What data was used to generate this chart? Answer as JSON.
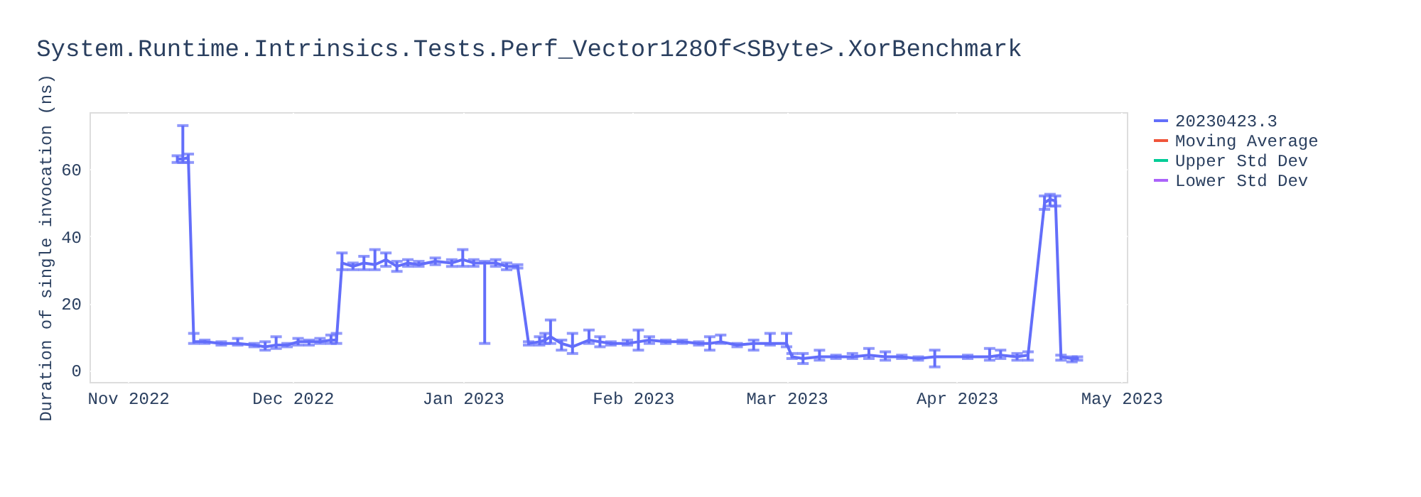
{
  "chart_data": {
    "type": "line",
    "title": "System.Runtime.Intrinsics.Tests.Perf_Vector128Of<SByte>.XorBenchmark",
    "ylabel": "Duration of single invocation (ns)",
    "xlim": [
      "2022-10-25",
      "2023-05-02"
    ],
    "xticks": [
      {
        "value": "2022-11-01",
        "label": "Nov 2022"
      },
      {
        "value": "2022-12-01",
        "label": "Dec 2022"
      },
      {
        "value": "2023-01-01",
        "label": "Jan 2023"
      },
      {
        "value": "2023-02-01",
        "label": "Feb 2023"
      },
      {
        "value": "2023-03-01",
        "label": "Mar 2023"
      },
      {
        "value": "2023-04-01",
        "label": "Apr 2023"
      },
      {
        "value": "2023-05-01",
        "label": "May 2023"
      }
    ],
    "ylim": [
      -3.5,
      77
    ],
    "yticks": [
      0,
      20,
      40,
      60
    ],
    "grid": true,
    "legend": "top right",
    "marker": "none",
    "line_style": "solid",
    "series": [
      {
        "name": "20230423.3",
        "color": "#636efa",
        "x": [
          "2022-11-10",
          "2022-11-11",
          "2022-11-12",
          "2022-11-13",
          "2022-11-15",
          "2022-11-18",
          "2022-11-21",
          "2022-11-24",
          "2022-11-26",
          "2022-11-28",
          "2022-11-30",
          "2022-12-02",
          "2022-12-04",
          "2022-12-06",
          "2022-12-08",
          "2022-12-09",
          "2022-12-10",
          "2022-12-12",
          "2022-12-14",
          "2022-12-16",
          "2022-12-18",
          "2022-12-20",
          "2022-12-22",
          "2022-12-24",
          "2022-12-27",
          "2022-12-30",
          "2023-01-01",
          "2023-01-03",
          "2023-01-05",
          "2023-01-07",
          "2023-01-09",
          "2023-01-11",
          "2023-01-13",
          "2023-01-15",
          "2023-01-16",
          "2023-01-17",
          "2023-01-19",
          "2023-01-21",
          "2023-01-24",
          "2023-01-26",
          "2023-01-28",
          "2023-01-31",
          "2023-02-02",
          "2023-02-04",
          "2023-02-07",
          "2023-02-10",
          "2023-02-13",
          "2023-02-15",
          "2023-02-17",
          "2023-02-20",
          "2023-02-23",
          "2023-02-26",
          "2023-03-01",
          "2023-03-02",
          "2023-03-04",
          "2023-03-07",
          "2023-03-10",
          "2023-03-13",
          "2023-03-16",
          "2023-03-19",
          "2023-03-22",
          "2023-03-25",
          "2023-03-28",
          "2023-04-03",
          "2023-04-07",
          "2023-04-09",
          "2023-04-12",
          "2023-04-14",
          "2023-04-17",
          "2023-04-18",
          "2023-04-19",
          "2023-04-20",
          "2023-04-22",
          "2023-04-23"
        ],
        "values": [
          63,
          63,
          63.5,
          8.5,
          8.5,
          8,
          8,
          7.5,
          7,
          7.5,
          7.5,
          8.5,
          8.5,
          8.5,
          9,
          9,
          32,
          31,
          32,
          31.5,
          33,
          31,
          32,
          31.5,
          32.5,
          32,
          33,
          32,
          32,
          32,
          31,
          31,
          8,
          8.5,
          9,
          10,
          8,
          7,
          9,
          8.5,
          8,
          8,
          8.5,
          9,
          8.5,
          8.5,
          8,
          8,
          8.5,
          7.5,
          8,
          8,
          8,
          4,
          3.5,
          4,
          4,
          4,
          4.5,
          4,
          4,
          3.5,
          4,
          4,
          4,
          4.5,
          4,
          4.5,
          50,
          51,
          50.5,
          4,
          3.5,
          3.5
        ],
        "errors": [
          [
            62,
            64
          ],
          [
            62,
            73
          ],
          [
            62,
            64.5
          ],
          [
            8,
            11
          ],
          [
            8,
            9
          ],
          [
            7.5,
            8.5
          ],
          [
            7.5,
            9.5
          ],
          [
            7,
            8
          ],
          [
            6,
            8.5
          ],
          [
            6.5,
            10
          ],
          [
            7,
            8
          ],
          [
            7.5,
            9.5
          ],
          [
            7.5,
            9
          ],
          [
            8,
            9.5
          ],
          [
            8,
            10.5
          ],
          [
            8,
            11
          ],
          [
            30,
            35
          ],
          [
            30,
            32
          ],
          [
            30,
            34
          ],
          [
            30,
            36
          ],
          [
            31,
            35
          ],
          [
            29.5,
            32.5
          ],
          [
            31,
            33
          ],
          [
            31,
            32.5
          ],
          [
            31.5,
            33.5
          ],
          [
            31,
            33
          ],
          [
            31,
            36
          ],
          [
            31,
            33
          ],
          [
            8,
            32.5
          ],
          [
            31,
            33
          ],
          [
            30,
            32
          ],
          [
            30.5,
            31.5
          ],
          [
            7.5,
            8.5
          ],
          [
            7.5,
            10
          ],
          [
            8,
            11
          ],
          [
            8,
            15
          ],
          [
            6,
            9
          ],
          [
            5,
            11
          ],
          [
            8,
            12
          ],
          [
            7,
            10
          ],
          [
            7.5,
            8.5
          ],
          [
            7.5,
            9
          ],
          [
            6,
            12
          ],
          [
            8,
            10
          ],
          [
            8,
            9
          ],
          [
            8,
            9
          ],
          [
            7.5,
            8.5
          ],
          [
            6,
            10
          ],
          [
            8,
            10.5
          ],
          [
            7,
            8
          ],
          [
            6,
            9
          ],
          [
            7.5,
            11
          ],
          [
            7,
            11
          ],
          [
            3.5,
            5
          ],
          [
            2,
            5
          ],
          [
            3,
            6
          ],
          [
            3.5,
            4.5
          ],
          [
            3.5,
            5
          ],
          [
            3.5,
            6.5
          ],
          [
            3,
            5.5
          ],
          [
            3.5,
            4.5
          ],
          [
            3,
            4
          ],
          [
            1,
            6
          ],
          [
            3.5,
            4.5
          ],
          [
            3,
            6.5
          ],
          [
            3.5,
            6
          ],
          [
            3,
            5
          ],
          [
            3,
            5.5
          ],
          [
            48,
            52
          ],
          [
            49,
            52.5
          ],
          [
            49,
            52
          ],
          [
            3,
            4.5
          ],
          [
            2.5,
            4
          ],
          [
            3,
            4
          ]
        ]
      },
      {
        "name": "Moving Average",
        "color": "#ef553b"
      },
      {
        "name": "Upper Std Dev",
        "color": "#00cc96"
      },
      {
        "name": "Lower Std Dev",
        "color": "#ab63fa"
      }
    ]
  }
}
